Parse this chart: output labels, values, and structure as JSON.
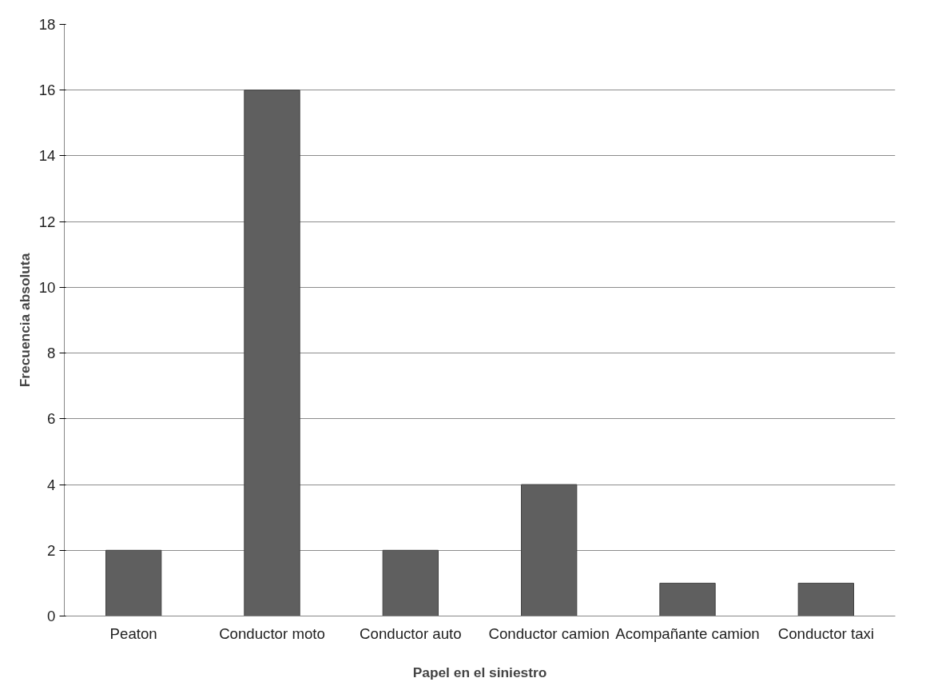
{
  "chart_data": {
    "type": "bar",
    "xlabel": "Papel en el siniestro",
    "ylabel": "Frecuencia absoluta",
    "categories": [
      "Peaton",
      "Conductor moto",
      "Conductor auto",
      "Conductor camion",
      "Acompañante camion",
      "Conductor taxi"
    ],
    "values": [
      2,
      16,
      2,
      4,
      1,
      1
    ],
    "color": "#5f5f5f",
    "ylim": [
      0,
      18
    ],
    "yticks": [
      0,
      2,
      4,
      6,
      8,
      10,
      12,
      14,
      16,
      18
    ],
    "grid": "y"
  }
}
